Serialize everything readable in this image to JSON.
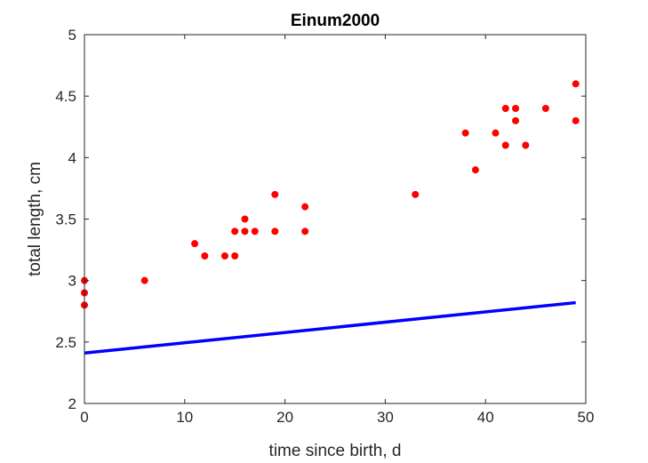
{
  "chart_data": {
    "type": "scatter",
    "title": "Einum2000",
    "xlabel": "time since birth, d",
    "ylabel": "total length, cm",
    "xlim": [
      0,
      50
    ],
    "ylim": [
      2,
      5
    ],
    "xticks": [
      0,
      10,
      20,
      30,
      40,
      50
    ],
    "yticks": [
      2,
      2.5,
      3,
      3.5,
      4,
      4.5,
      5
    ],
    "xtick_labels": [
      "0",
      "10",
      "20",
      "30",
      "40",
      "50"
    ],
    "ytick_labels": [
      "2",
      "2.5",
      "3",
      "3.5",
      "4",
      "4.5",
      "5"
    ],
    "grid": false,
    "box": true,
    "series": [
      {
        "kind": "scatter",
        "color": "#ff0000",
        "points": [
          [
            0,
            3.0
          ],
          [
            0,
            2.9
          ],
          [
            0,
            2.8
          ],
          [
            6,
            3.0
          ],
          [
            11,
            3.3
          ],
          [
            12,
            3.2
          ],
          [
            14,
            3.2
          ],
          [
            15,
            3.2
          ],
          [
            15,
            3.4
          ],
          [
            16,
            3.4
          ],
          [
            16,
            3.5
          ],
          [
            17,
            3.4
          ],
          [
            19,
            3.7
          ],
          [
            19,
            3.4
          ],
          [
            22,
            3.6
          ],
          [
            22,
            3.4
          ],
          [
            33,
            3.7
          ],
          [
            38,
            4.2
          ],
          [
            39,
            3.9
          ],
          [
            41,
            4.2
          ],
          [
            42,
            4.4
          ],
          [
            42,
            4.1
          ],
          [
            43,
            4.4
          ],
          [
            43,
            4.3
          ],
          [
            44,
            4.1
          ],
          [
            46,
            4.4
          ],
          [
            49,
            4.6
          ],
          [
            49,
            4.3
          ]
        ]
      },
      {
        "kind": "line",
        "color": "#0000ff",
        "points": [
          [
            0,
            2.41
          ],
          [
            49,
            2.82
          ]
        ]
      }
    ]
  }
}
